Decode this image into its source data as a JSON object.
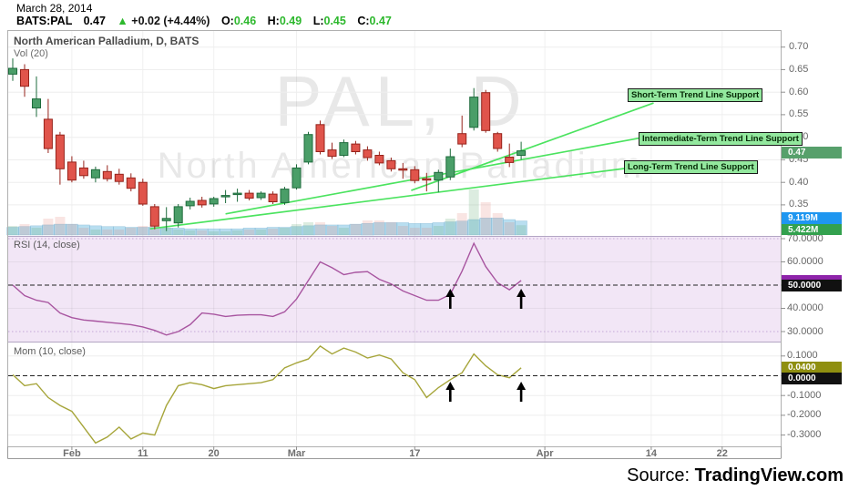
{
  "header": {
    "date": "March 28, 2014",
    "symbol": "BATS:PAL",
    "last_price": "0.47",
    "up_arrow": "▲",
    "change": "+0.02 (+4.44%)",
    "ohlc": {
      "o_label": "O:",
      "o": "0.46",
      "h_label": "H:",
      "h": "0.49",
      "l_label": "L:",
      "l": "0.45",
      "c_label": "C:",
      "c": "0.47"
    }
  },
  "main_panel": {
    "title": "North American Palladium, D, BATS",
    "indicator_label": "Vol (20)",
    "watermark_line1": "PAL, D",
    "watermark_line2": "North American Palladium",
    "price_badge": "0.47",
    "volume_badge_blue": "9.119M",
    "volume_badge_green": "5.422M"
  },
  "rsi_panel": {
    "label": "RSI (14, close)",
    "axis_ticks": [
      "70.0000",
      "60.0000",
      "50.0000",
      "40.0000",
      "30.0000"
    ],
    "level_badge": "50.0000"
  },
  "mom_panel": {
    "label": "Mom (10, close)",
    "axis_ticks": [
      "0.1000",
      "0.0000",
      "-0.1000",
      "-0.2000",
      "-0.3000"
    ],
    "value_badge": "0.0400",
    "level_badge": "0.0000"
  },
  "price_axis_ticks": [
    "0.70",
    "0.65",
    "0.60",
    "0.55",
    "0.50",
    "0.45",
    "0.40",
    "0.35"
  ],
  "source": {
    "prefix": "Source:",
    "site": "TradingView.com"
  },
  "colors": {
    "up_candle": "#4A9E68",
    "up_border": "#1E6B3C",
    "down_candle": "#E0544B",
    "down_border": "#96231B",
    "trend_line": "#4BE35F",
    "trend_label_bg": "#93E89E",
    "rsi_line": "#A855A0",
    "rsi_bg": "#F2E6F6",
    "mom_line": "#A6A53A",
    "price_badge_bg": "#57A06B",
    "volume_badge_blue_bg": "#1E96F0",
    "volume_badge_green_bg": "#33A14E",
    "level_badge_bg": "#111111",
    "mom_value_badge_bg": "#8F8F10",
    "rsi_value_sliver": "#8E24AA",
    "ohlc_value_color": "#2DB82D",
    "volume_bar_blue": "rgba(125,195,228,0.55)",
    "up_volume_faint": "rgba(96,168,115,0.22)",
    "down_volume_faint": "rgba(224,110,100,0.18)"
  },
  "chart_data": {
    "type": "candlestick",
    "title": "North American Palladium, D, BATS",
    "symbol": "PAL",
    "interval": "D",
    "exchange": "BATS",
    "price_range": [
      0.29,
      0.72
    ],
    "price_gridlines": [
      0.7,
      0.65,
      0.6,
      0.55,
      0.5,
      0.45,
      0.4,
      0.35
    ],
    "x_ticks": [
      {
        "label": "Feb",
        "index": 5
      },
      {
        "label": "11",
        "index": 11
      },
      {
        "label": "20",
        "index": 17
      },
      {
        "label": "Mar",
        "index": 24
      },
      {
        "label": "17",
        "index": 34
      },
      {
        "label": "Apr",
        "index": 45
      },
      {
        "label": "14",
        "index": 54
      },
      {
        "label": "22",
        "index": 60
      }
    ],
    "candles": [
      [
        0.64,
        0.675,
        0.625,
        0.653
      ],
      [
        0.65,
        0.662,
        0.59,
        0.613
      ],
      [
        0.565,
        0.635,
        0.545,
        0.585
      ],
      [
        0.54,
        0.585,
        0.465,
        0.475
      ],
      [
        0.505,
        0.512,
        0.395,
        0.43
      ],
      [
        0.445,
        0.458,
        0.4,
        0.405
      ],
      [
        0.432,
        0.448,
        0.408,
        0.415
      ],
      [
        0.41,
        0.435,
        0.4,
        0.428
      ],
      [
        0.424,
        0.438,
        0.402,
        0.408
      ],
      [
        0.418,
        0.43,
        0.395,
        0.402
      ],
      [
        0.41,
        0.42,
        0.38,
        0.387
      ],
      [
        0.4,
        0.408,
        0.348,
        0.352
      ],
      [
        0.346,
        0.352,
        0.296,
        0.303
      ],
      [
        0.315,
        0.345,
        0.292,
        0.32
      ],
      [
        0.31,
        0.352,
        0.3,
        0.346
      ],
      [
        0.348,
        0.366,
        0.34,
        0.358
      ],
      [
        0.36,
        0.368,
        0.344,
        0.35
      ],
      [
        0.352,
        0.368,
        0.346,
        0.364
      ],
      [
        0.37,
        0.383,
        0.354,
        0.371
      ],
      [
        0.375,
        0.386,
        0.357,
        0.376
      ],
      [
        0.376,
        0.383,
        0.36,
        0.365
      ],
      [
        0.366,
        0.38,
        0.361,
        0.376
      ],
      [
        0.374,
        0.38,
        0.352,
        0.357
      ],
      [
        0.355,
        0.39,
        0.35,
        0.385
      ],
      [
        0.388,
        0.44,
        0.384,
        0.432
      ],
      [
        0.445,
        0.512,
        0.44,
        0.506
      ],
      [
        0.528,
        0.537,
        0.462,
        0.468
      ],
      [
        0.472,
        0.488,
        0.452,
        0.458
      ],
      [
        0.46,
        0.495,
        0.456,
        0.488
      ],
      [
        0.485,
        0.492,
        0.462,
        0.468
      ],
      [
        0.472,
        0.48,
        0.448,
        0.455
      ],
      [
        0.46,
        0.468,
        0.438,
        0.443
      ],
      [
        0.448,
        0.455,
        0.424,
        0.43
      ],
      [
        0.43,
        0.443,
        0.408,
        0.428
      ],
      [
        0.428,
        0.436,
        0.398,
        0.404
      ],
      [
        0.408,
        0.421,
        0.38,
        0.405
      ],
      [
        0.405,
        0.428,
        0.378,
        0.422
      ],
      [
        0.412,
        0.475,
        0.405,
        0.457
      ],
      [
        0.508,
        0.548,
        0.478,
        0.485
      ],
      [
        0.522,
        0.609,
        0.515,
        0.589
      ],
      [
        0.599,
        0.605,
        0.51,
        0.515
      ],
      [
        0.508,
        0.512,
        0.468,
        0.475
      ],
      [
        0.456,
        0.486,
        0.434,
        0.444
      ],
      [
        0.46,
        0.49,
        0.45,
        0.47
      ]
    ],
    "volume_m": [
      5,
      6,
      4,
      9,
      10,
      6,
      4,
      3,
      3,
      3,
      4,
      5,
      7,
      4,
      3,
      2.5,
      2.5,
      2,
      2,
      2.5,
      3,
      3,
      3.5,
      4,
      6,
      7,
      7,
      5,
      4,
      6,
      8,
      8,
      7,
      5,
      4,
      4,
      5,
      9,
      12,
      25,
      18,
      12,
      7,
      5.422
    ],
    "volume_overlay_m": [
      5,
      5.5,
      6,
      6.5,
      7,
      7,
      6.5,
      6,
      5.5,
      5.5,
      5,
      5,
      5,
      4.5,
      4.5,
      4,
      4,
      4,
      4,
      4,
      4.5,
      4.5,
      5,
      5,
      5.5,
      6,
      6.5,
      6.5,
      6.5,
      7,
      7.5,
      8,
      8,
      8,
      7.5,
      7.5,
      8,
      8.5,
      9,
      10,
      11,
      11,
      10,
      9.119
    ],
    "indicators": {
      "rsi": {
        "name": "RSI (14, close)",
        "gridlines": [
          70,
          60,
          50,
          40,
          30
        ],
        "level_line": 50,
        "values": [
          50,
          45.5,
          43.5,
          42.5,
          38,
          36,
          35,
          34.5,
          34,
          33.5,
          33,
          32,
          30.5,
          28.5,
          30,
          33,
          38,
          37.5,
          36.5,
          37,
          37.2,
          37.2,
          36.5,
          38.5,
          44,
          52,
          60,
          57.5,
          54.5,
          55.5,
          55.8,
          52.5,
          50.5,
          47.5,
          45.5,
          43.5,
          43.5,
          46,
          56,
          68,
          58,
          51,
          48,
          52
        ]
      },
      "mom": {
        "name": "Mom (10, close)",
        "gridlines": [
          0.1,
          -0.1,
          -0.2,
          -0.3
        ],
        "level_line": 0,
        "last_value": 0.04,
        "values": [
          0.005,
          -0.05,
          -0.04,
          -0.11,
          -0.15,
          -0.18,
          -0.26,
          -0.34,
          -0.31,
          -0.26,
          -0.32,
          -0.29,
          -0.3,
          -0.15,
          -0.05,
          -0.035,
          -0.045,
          -0.065,
          -0.05,
          -0.045,
          -0.04,
          -0.035,
          -0.02,
          0.04,
          0.065,
          0.085,
          0.15,
          0.11,
          0.14,
          0.12,
          0.09,
          0.105,
          0.085,
          0.015,
          -0.02,
          -0.11,
          -0.06,
          -0.02,
          0.015,
          0.11,
          0.05,
          0.005,
          -0.01,
          0.04
        ]
      }
    },
    "trendlines": [
      {
        "label": "Short-Term Trend Line Support",
        "from": {
          "index": 33.7,
          "price": 0.382
        },
        "to": {
          "index": 54.2,
          "price": 0.576
        }
      },
      {
        "label": "Intermediate-Term Trend Line Support",
        "from": {
          "index": 18.0,
          "price": 0.33
        },
        "to": {
          "index": 53.6,
          "price": 0.501
        }
      },
      {
        "label": "Long-Term Trend Line Support",
        "from": {
          "index": 11.6,
          "price": 0.297
        },
        "to": {
          "index": 51.8,
          "price": 0.431
        }
      }
    ],
    "signal_arrows": {
      "x_indices": [
        37,
        43
      ],
      "panels": [
        "rsi",
        "mom"
      ]
    }
  }
}
